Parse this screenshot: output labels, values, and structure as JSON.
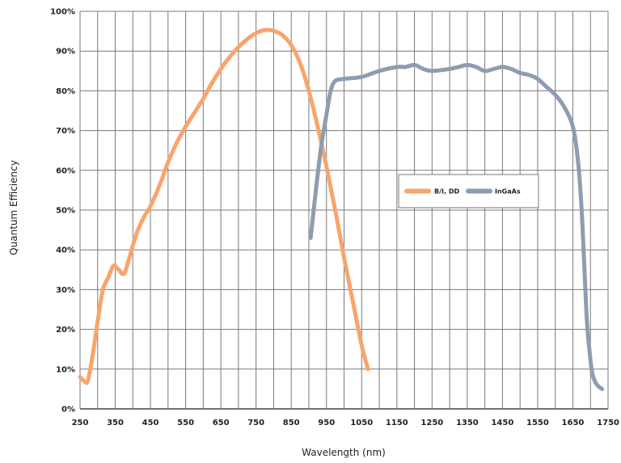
{
  "chart_data": {
    "type": "line",
    "title": "",
    "xlabel": "Wavelength (nm)",
    "ylabel": "Quantum Efficiency",
    "xlim": [
      250,
      1750
    ],
    "ylim": [
      0,
      100
    ],
    "x_ticks": [
      250,
      350,
      450,
      550,
      650,
      750,
      850,
      950,
      1050,
      1150,
      1250,
      1350,
      1450,
      1550,
      1650,
      1750
    ],
    "x_tick_labels": [
      "250",
      "350",
      "450",
      "550",
      "650",
      "750",
      "850",
      "950",
      "1050",
      "1150",
      "1250",
      "1350",
      "1450",
      "1550",
      "1650",
      "1750"
    ],
    "y_ticks": [
      0,
      10,
      20,
      30,
      40,
      50,
      60,
      70,
      80,
      90,
      100
    ],
    "y_tick_labels": [
      "0%",
      "10%",
      "20%",
      "30%",
      "40%",
      "50%",
      "60%",
      "70%",
      "80%",
      "90%",
      "100%"
    ],
    "x_grid_step": 50,
    "grid": true,
    "legend_position": "center-right",
    "series": [
      {
        "name": "B/I, DD",
        "color": "#f9a46e",
        "x": [
          250,
          262,
          272,
          285,
          300,
          315,
          330,
          345,
          360,
          375,
          390,
          410,
          430,
          450,
          475,
          500,
          525,
          550,
          575,
          600,
          625,
          650,
          675,
          700,
          725,
          750,
          775,
          800,
          825,
          850,
          875,
          900,
          925,
          950,
          975,
          1000,
          1025,
          1050,
          1068
        ],
        "y": [
          8,
          7,
          7,
          13,
          22,
          30,
          33,
          36,
          35,
          34,
          38,
          44,
          48,
          51,
          56,
          62,
          67,
          71,
          74.5,
          78,
          82,
          85.5,
          88.5,
          91,
          93,
          94.5,
          95.3,
          95.1,
          94,
          91.5,
          87,
          80,
          71,
          61,
          50,
          38,
          27,
          16,
          10
        ]
      },
      {
        "name": "InGaAs",
        "color": "#8d9db1",
        "x": [
          905,
          920,
          935,
          950,
          962,
          975,
          1000,
          1050,
          1100,
          1150,
          1175,
          1200,
          1225,
          1250,
          1300,
          1325,
          1350,
          1375,
          1400,
          1425,
          1450,
          1475,
          1500,
          1525,
          1550,
          1575,
          1600,
          1625,
          1650,
          1665,
          1675,
          1683,
          1690,
          1698,
          1705,
          1715,
          1725,
          1733
        ],
        "y": [
          43,
          55,
          66,
          74,
          80,
          82.5,
          83,
          83.5,
          85,
          86,
          86,
          86.5,
          85.5,
          85,
          85.5,
          86,
          86.5,
          86,
          85,
          85.5,
          86,
          85.5,
          84.5,
          84,
          83,
          81,
          79,
          76,
          71,
          62,
          50,
          35,
          22,
          14,
          9,
          6.5,
          5.5,
          5
        ]
      }
    ]
  }
}
